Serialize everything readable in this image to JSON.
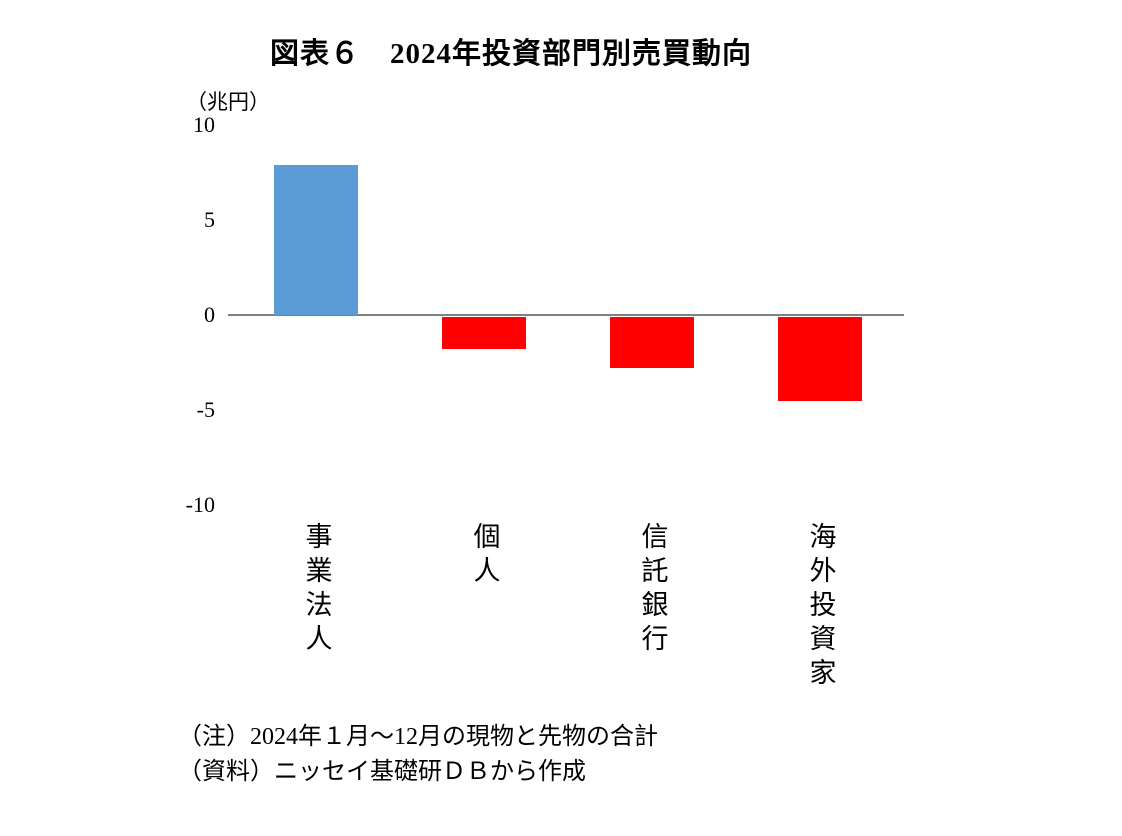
{
  "title": "図表６　2024年投資部門別売買動向",
  "unit_label": "（兆円）",
  "notes": [
    "（注）2024年１月～12月の現物と先物の合計",
    "（資料）ニッセイ基礎研ＤＢから作成"
  ],
  "colors": {
    "positive_bar": "#5b9bd5",
    "negative_bar": "#ff0000",
    "axis_line": "#808080"
  },
  "chart_data": {
    "type": "bar",
    "categories": [
      "事業法人",
      "個人",
      "信託銀行",
      "海外投資家"
    ],
    "values": [
      7.9,
      -1.7,
      -2.7,
      -4.4
    ],
    "bar_colors": [
      "#5b9bd5",
      "#ff0000",
      "#ff0000",
      "#ff0000"
    ],
    "title": "図表６　2024年投資部門別売買動向",
    "ylabel": "（兆円）",
    "xlabel": "",
    "ylim": [
      -10,
      10
    ],
    "yticks": [
      10,
      5,
      0,
      -5,
      -10
    ],
    "grid": false,
    "legend": "none"
  }
}
